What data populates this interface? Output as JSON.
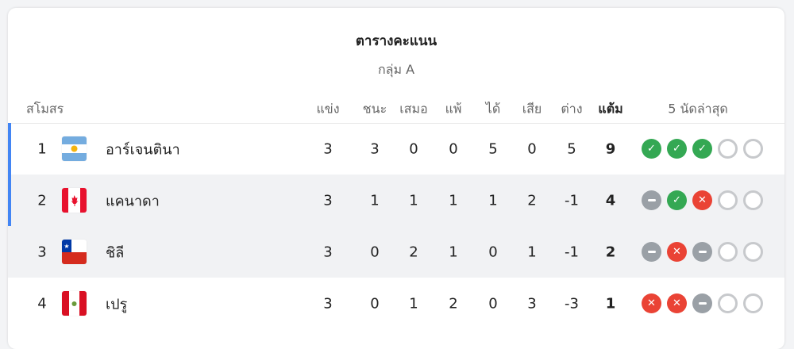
{
  "title": "ตารางคะแนน",
  "group": "กลุ่ม A",
  "headers": {
    "club": "สโมสร",
    "played": "แข่ง",
    "won": "ชนะ",
    "drawn": "เสมอ",
    "lost": "แพ้",
    "gf": "ได้",
    "ga": "เสีย",
    "gd": "ต่าง",
    "pts": "แต้ม",
    "form": "5 นัดล่าสุด"
  },
  "colors": {
    "win": "#34a853",
    "loss": "#ea4335",
    "draw": "#9aa0a6",
    "qualify_bar": "#4285f4"
  },
  "rows": [
    {
      "rank": "1",
      "team": "อาร์เจนตินา",
      "flag": "argentina",
      "played": "3",
      "won": "3",
      "drawn": "0",
      "lost": "0",
      "gf": "5",
      "ga": "0",
      "gd": "5",
      "pts": "9",
      "form": [
        "W",
        "W",
        "W",
        "N",
        "N"
      ],
      "qualified": true
    },
    {
      "rank": "2",
      "team": "แคนาดา",
      "flag": "canada",
      "played": "3",
      "won": "1",
      "drawn": "1",
      "lost": "1",
      "gf": "1",
      "ga": "2",
      "gd": "-1",
      "pts": "4",
      "form": [
        "D",
        "W",
        "L",
        "N",
        "N"
      ],
      "qualified": true
    },
    {
      "rank": "3",
      "team": "ชิลี",
      "flag": "chile",
      "played": "3",
      "won": "0",
      "drawn": "2",
      "lost": "1",
      "gf": "0",
      "ga": "1",
      "gd": "-1",
      "pts": "2",
      "form": [
        "D",
        "L",
        "D",
        "N",
        "N"
      ],
      "qualified": false
    },
    {
      "rank": "4",
      "team": "เปรู",
      "flag": "peru",
      "played": "3",
      "won": "0",
      "drawn": "1",
      "lost": "2",
      "gf": "0",
      "ga": "3",
      "gd": "-3",
      "pts": "1",
      "form": [
        "L",
        "L",
        "D",
        "N",
        "N"
      ],
      "qualified": false
    }
  ]
}
